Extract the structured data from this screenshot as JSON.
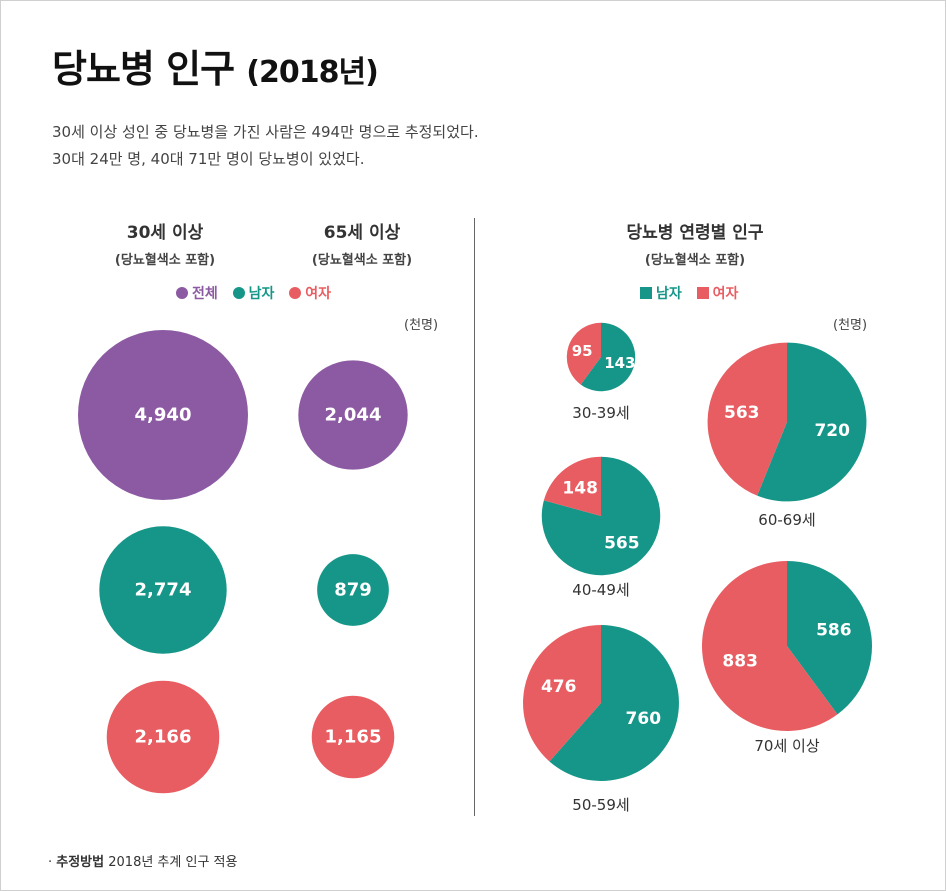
{
  "title": {
    "main": "당뇨병 인구",
    "year": "(2018년)"
  },
  "subtitle": {
    "line1": "30세 이상 성인 중 당뇨병을 가진 사람은 494만 명으로 추정되었다.",
    "line2": "30대 24만 명, 40대 71만 명이 당뇨병이 있었다."
  },
  "left_panel": {
    "col1": {
      "title": "30세 이상",
      "note": "(당뇨혈색소 포함)"
    },
    "col2": {
      "title": "65세 이상",
      "note": "(당뇨혈색소 포함)"
    },
    "legend": [
      {
        "label": "전체",
        "color": "#8c5aa2"
      },
      {
        "label": "남자",
        "color": "#159688"
      },
      {
        "label": "여자",
        "color": "#e85d61"
      }
    ],
    "unit": "(천명)"
  },
  "right_panel": {
    "title": "당뇨병 연령별 인구",
    "note": "(당뇨혈색소 포함)",
    "legend": [
      {
        "label": "남자",
        "color": "#159688"
      },
      {
        "label": "여자",
        "color": "#e85d61"
      }
    ],
    "unit": "(천명)"
  },
  "footnote": {
    "bold": "추정방법",
    "text": "2018년 추계 인구 적용"
  },
  "chart_data": [
    {
      "type": "bubble",
      "title": "30세 이상 (당뇨혈색소 포함)",
      "unit": "천명",
      "categories": [
        "전체",
        "남자",
        "여자"
      ],
      "values": [
        4940,
        2774,
        2166
      ],
      "labels": [
        "4,940",
        "2,774",
        "2,166"
      ]
    },
    {
      "type": "bubble",
      "title": "65세 이상 (당뇨혈색소 포함)",
      "unit": "천명",
      "categories": [
        "전체",
        "남자",
        "여자"
      ],
      "values": [
        2044,
        879,
        1165
      ],
      "labels": [
        "2,044",
        "879",
        "1,165"
      ]
    },
    {
      "type": "pie",
      "title": "당뇨병 연령별 인구 (당뇨혈색소 포함)",
      "unit": "천명",
      "series_names": [
        "남자",
        "여자"
      ],
      "groups": [
        {
          "age": "30-39세",
          "male": 143,
          "female": 95
        },
        {
          "age": "40-49세",
          "male": 565,
          "female": 148
        },
        {
          "age": "50-59세",
          "male": 760,
          "female": 476
        },
        {
          "age": "60-69세",
          "male": 720,
          "female": 563
        },
        {
          "age": "70세 이상",
          "male": 586,
          "female": 883
        }
      ]
    }
  ]
}
